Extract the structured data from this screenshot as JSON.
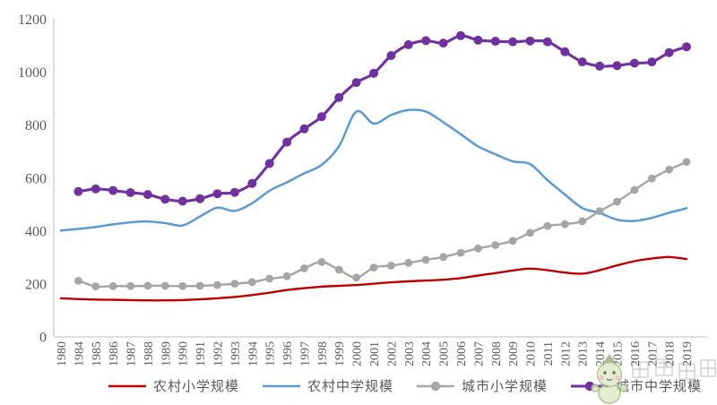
{
  "chart_data": {
    "type": "line",
    "title": "",
    "xlabel": "",
    "ylabel": "",
    "categories": [
      "1980",
      "1984",
      "1985",
      "1986",
      "1987",
      "1988",
      "1989",
      "1990",
      "1991",
      "1992",
      "1993",
      "1994",
      "1995",
      "1996",
      "1997",
      "1998",
      "1999",
      "2000",
      "2001",
      "2002",
      "2003",
      "2004",
      "2005",
      "2006",
      "2007",
      "2008",
      "2009",
      "2010",
      "2011",
      "2012",
      "2013",
      "2014",
      "2015",
      "2016",
      "2017",
      "2018",
      "2019"
    ],
    "series": [
      {
        "name": "农村小学规模",
        "color": "#C00000",
        "marker": false,
        "values": [
          146,
          143,
          141,
          140,
          139,
          138,
          138,
          139,
          142,
          146,
          151,
          158,
          167,
          177,
          184,
          190,
          193,
          196,
          201,
          206,
          210,
          213,
          216,
          222,
          232,
          241,
          251,
          258,
          252,
          243,
          239,
          252,
          270,
          286,
          296,
          302,
          294
        ]
      },
      {
        "name": "农村中学规模",
        "color": "#5B9BD5",
        "marker": false,
        "values": [
          402,
          408,
          415,
          425,
          433,
          436,
          430,
          421,
          455,
          488,
          476,
          505,
          552,
          584,
          618,
          650,
          720,
          851,
          806,
          838,
          857,
          851,
          811,
          766,
          720,
          690,
          663,
          653,
          592,
          538,
          487,
          468,
          443,
          438,
          450,
          469,
          486
        ]
      },
      {
        "name": "城市小学规模",
        "color": "#A5A5A5",
        "marker": true,
        "values": [
          null,
          212,
          191,
          192,
          192,
          193,
          193,
          192,
          193,
          196,
          201,
          207,
          220,
          229,
          259,
          283,
          254,
          224,
          262,
          269,
          280,
          291,
          302,
          318,
          334,
          347,
          363,
          393,
          419,
          426,
          437,
          475,
          511,
          555,
          598,
          632,
          661
        ]
      },
      {
        "name": "城市中学规模",
        "color": "#7030A0",
        "marker": true,
        "values": [
          null,
          549,
          559,
          553,
          545,
          538,
          520,
          513,
          522,
          541,
          546,
          580,
          655,
          736,
          786,
          832,
          904,
          961,
          996,
          1063,
          1104,
          1119,
          1110,
          1138,
          1121,
          1117,
          1115,
          1118,
          1115,
          1077,
          1039,
          1023,
          1025,
          1034,
          1039,
          1074,
          1096
        ]
      }
    ],
    "ylim": [
      0,
      1200
    ],
    "y_ticks": [
      0,
      200,
      400,
      600,
      800,
      1000,
      1200
    ],
    "grid": false,
    "legend_position": "bottom",
    "axis_color": "#C9C9C9",
    "label_color": "#595959"
  },
  "watermark": {
    "style": "mascot-logo"
  }
}
